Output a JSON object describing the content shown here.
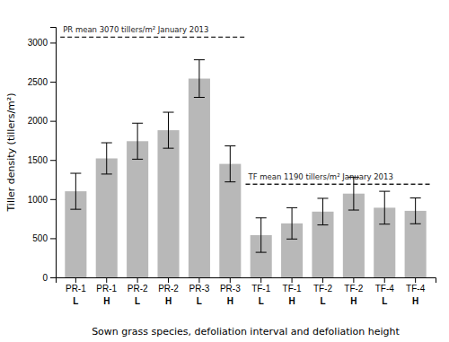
{
  "chart_data": {
    "type": "bar",
    "categories": [
      [
        "PR-1",
        "L"
      ],
      [
        "PR-1",
        "H"
      ],
      [
        "PR-2",
        "L"
      ],
      [
        "PR-2",
        "H"
      ],
      [
        "PR-3",
        "L"
      ],
      [
        "PR-3",
        "H"
      ],
      [
        "TF-1",
        "L"
      ],
      [
        "TF-1",
        "H"
      ],
      [
        "TF-2",
        "L"
      ],
      [
        "TF-2",
        "H"
      ],
      [
        "TF-4",
        "L"
      ],
      [
        "TF-4",
        "H"
      ]
    ],
    "values": [
      1100,
      1520,
      1740,
      1880,
      2540,
      1450,
      540,
      690,
      840,
      1070,
      890,
      850
    ],
    "errors": [
      230,
      200,
      230,
      230,
      240,
      230,
      220,
      200,
      170,
      210,
      210,
      165
    ],
    "color": "#b8b8b8",
    "xlabel": "Sown grass species, defoliation interval and defoliation height",
    "ylabel": "Tiller density (tillers/m²)",
    "ylim": [
      0,
      3200
    ],
    "yticks": [
      0,
      500,
      1000,
      1500,
      2000,
      2500,
      3000
    ],
    "grid": false,
    "reference_lines": [
      {
        "y": 3070,
        "label": "PR mean 3070 tillers/m² January 2013",
        "span": [
          0,
          5
        ]
      },
      {
        "y": 1190,
        "label": "TF mean 1190 tillers/m² January 2013",
        "span": [
          6,
          11
        ]
      }
    ]
  }
}
